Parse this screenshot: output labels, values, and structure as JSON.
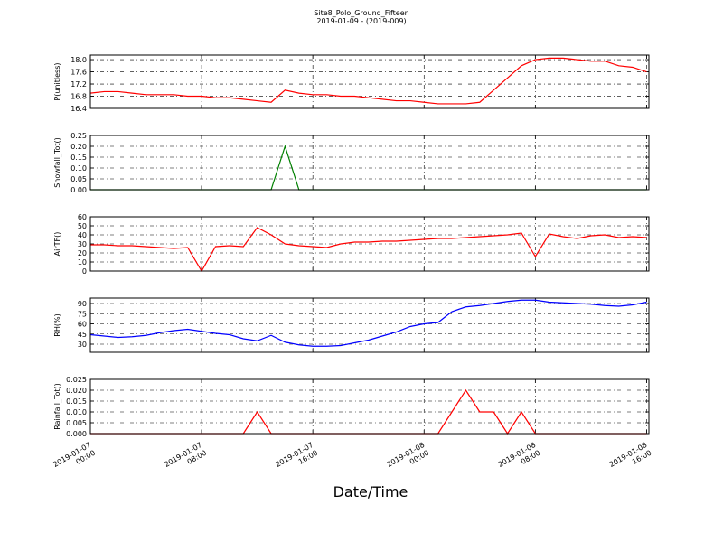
{
  "chart_data": [
    {
      "type": "line",
      "title": "Site8_Polo_Ground_Fifteen",
      "subtitle": "2019-01-09 - (2019-009)",
      "ylabel": "P(unitless)",
      "x": [
        "2019-01-07 00:00",
        "2019-01-07 01:00",
        "2019-01-07 02:00",
        "2019-01-07 03:00",
        "2019-01-07 04:00",
        "2019-01-07 05:00",
        "2019-01-07 06:00",
        "2019-01-07 07:00",
        "2019-01-07 08:00",
        "2019-01-07 09:00",
        "2019-01-07 10:00",
        "2019-01-07 11:00",
        "2019-01-07 12:00",
        "2019-01-07 13:00",
        "2019-01-07 14:00",
        "2019-01-07 15:00",
        "2019-01-07 16:00",
        "2019-01-07 17:00",
        "2019-01-07 18:00",
        "2019-01-07 19:00",
        "2019-01-07 20:00",
        "2019-01-07 21:00",
        "2019-01-07 22:00",
        "2019-01-07 23:00",
        "2019-01-08 00:00",
        "2019-01-08 01:00",
        "2019-01-08 02:00",
        "2019-01-08 03:00",
        "2019-01-08 04:00",
        "2019-01-08 05:00",
        "2019-01-08 06:00",
        "2019-01-08 07:00",
        "2019-01-08 08:00",
        "2019-01-08 09:00",
        "2019-01-08 10:00",
        "2019-01-08 11:00",
        "2019-01-08 12:00",
        "2019-01-08 13:00",
        "2019-01-08 14:00",
        "2019-01-08 15:00",
        "2019-01-08 16:00"
      ],
      "series": [
        {
          "name": "P",
          "color": "#ff0000",
          "values": [
            16.9,
            16.95,
            16.95,
            16.9,
            16.85,
            16.85,
            16.85,
            16.8,
            16.8,
            16.75,
            16.75,
            16.7,
            16.65,
            16.6,
            17.0,
            16.9,
            16.85,
            16.85,
            16.8,
            16.8,
            16.75,
            16.7,
            16.65,
            16.65,
            16.6,
            16.55,
            16.55,
            16.55,
            16.6,
            17.0,
            17.4,
            17.8,
            18.0,
            18.05,
            18.05,
            18.0,
            17.95,
            17.95,
            17.8,
            17.75,
            17.6
          ]
        }
      ],
      "ylim": [
        16.4,
        18.15
      ],
      "yticks": [
        16.4,
        16.8,
        17.2,
        17.6,
        {
          "value": 18,
          "label": "18.0"
        }
      ],
      "grid": true
    },
    {
      "type": "line",
      "ylabel": "Snowfall_Tot()",
      "x": [
        "2019-01-07 00:00",
        "2019-01-07 01:00",
        "2019-01-07 02:00",
        "2019-01-07 03:00",
        "2019-01-07 04:00",
        "2019-01-07 05:00",
        "2019-01-07 06:00",
        "2019-01-07 07:00",
        "2019-01-07 08:00",
        "2019-01-07 09:00",
        "2019-01-07 10:00",
        "2019-01-07 11:00",
        "2019-01-07 12:00",
        "2019-01-07 13:00",
        "2019-01-07 14:00",
        "2019-01-07 15:00",
        "2019-01-07 16:00",
        "2019-01-07 17:00",
        "2019-01-07 18:00",
        "2019-01-07 19:00",
        "2019-01-07 20:00",
        "2019-01-07 21:00",
        "2019-01-07 22:00",
        "2019-01-07 23:00",
        "2019-01-08 00:00",
        "2019-01-08 01:00",
        "2019-01-08 02:00",
        "2019-01-08 03:00",
        "2019-01-08 04:00",
        "2019-01-08 05:00",
        "2019-01-08 06:00",
        "2019-01-08 07:00",
        "2019-01-08 08:00",
        "2019-01-08 09:00",
        "2019-01-08 10:00",
        "2019-01-08 11:00",
        "2019-01-08 12:00",
        "2019-01-08 13:00",
        "2019-01-08 14:00",
        "2019-01-08 15:00",
        "2019-01-08 16:00"
      ],
      "series": [
        {
          "name": "Snowfall_Tot",
          "color": "#008000",
          "values": [
            0,
            0,
            0,
            0,
            0,
            0,
            0,
            0,
            0,
            0,
            0,
            0,
            0,
            0,
            0.2,
            0,
            0,
            0,
            0,
            0,
            0,
            0,
            0,
            0,
            0,
            0,
            0,
            0,
            0,
            0,
            0,
            0,
            0,
            0,
            0,
            0,
            0,
            0,
            0,
            0,
            0
          ]
        }
      ],
      "ylim": [
        0,
        0.25
      ],
      "yticks": [
        {
          "value": 0,
          "label": "0.00"
        },
        {
          "value": 0.05,
          "label": "0.05"
        },
        {
          "value": 0.1,
          "label": "0.10"
        },
        {
          "value": 0.15,
          "label": "0.15"
        },
        {
          "value": 0.2,
          "label": "0.20"
        },
        {
          "value": 0.25,
          "label": "0.25"
        }
      ],
      "grid": true
    },
    {
      "type": "line",
      "ylabel": "AirTF()",
      "x": [
        "2019-01-07 00:00",
        "2019-01-07 01:00",
        "2019-01-07 02:00",
        "2019-01-07 03:00",
        "2019-01-07 04:00",
        "2019-01-07 05:00",
        "2019-01-07 06:00",
        "2019-01-07 07:00",
        "2019-01-07 08:00",
        "2019-01-07 09:00",
        "2019-01-07 10:00",
        "2019-01-07 11:00",
        "2019-01-07 12:00",
        "2019-01-07 13:00",
        "2019-01-07 14:00",
        "2019-01-07 15:00",
        "2019-01-07 16:00",
        "2019-01-07 17:00",
        "2019-01-07 18:00",
        "2019-01-07 19:00",
        "2019-01-07 20:00",
        "2019-01-07 21:00",
        "2019-01-07 22:00",
        "2019-01-07 23:00",
        "2019-01-08 00:00",
        "2019-01-08 01:00",
        "2019-01-08 02:00",
        "2019-01-08 03:00",
        "2019-01-08 04:00",
        "2019-01-08 05:00",
        "2019-01-08 06:00",
        "2019-01-08 07:00",
        "2019-01-08 08:00",
        "2019-01-08 09:00",
        "2019-01-08 10:00",
        "2019-01-08 11:00",
        "2019-01-08 12:00",
        "2019-01-08 13:00",
        "2019-01-08 14:00",
        "2019-01-08 15:00",
        "2019-01-08 16:00"
      ],
      "series": [
        {
          "name": "AirTF",
          "color": "#ff0000",
          "values": [
            29,
            29,
            28,
            28,
            27,
            26,
            25,
            26,
            0,
            27,
            28,
            27,
            48,
            40,
            30,
            28,
            27,
            26,
            30,
            32,
            32,
            33,
            33,
            34,
            35,
            36,
            36,
            37,
            38,
            39,
            40,
            42,
            16,
            41,
            38,
            36,
            39,
            40,
            37,
            38,
            37
          ]
        }
      ],
      "ylim": [
        0,
        60
      ],
      "yticks": [
        0,
        10,
        20,
        30,
        40,
        50,
        60
      ],
      "grid": true
    },
    {
      "type": "line",
      "ylabel": "RH(%)",
      "x": [
        "2019-01-07 00:00",
        "2019-01-07 01:00",
        "2019-01-07 02:00",
        "2019-01-07 03:00",
        "2019-01-07 04:00",
        "2019-01-07 05:00",
        "2019-01-07 06:00",
        "2019-01-07 07:00",
        "2019-01-07 08:00",
        "2019-01-07 09:00",
        "2019-01-07 10:00",
        "2019-01-07 11:00",
        "2019-01-07 12:00",
        "2019-01-07 13:00",
        "2019-01-07 14:00",
        "2019-01-07 15:00",
        "2019-01-07 16:00",
        "2019-01-07 17:00",
        "2019-01-07 18:00",
        "2019-01-07 19:00",
        "2019-01-07 20:00",
        "2019-01-07 21:00",
        "2019-01-07 22:00",
        "2019-01-07 23:00",
        "2019-01-08 00:00",
        "2019-01-08 01:00",
        "2019-01-08 02:00",
        "2019-01-08 03:00",
        "2019-01-08 04:00",
        "2019-01-08 05:00",
        "2019-01-08 06:00",
        "2019-01-08 07:00",
        "2019-01-08 08:00",
        "2019-01-08 09:00",
        "2019-01-08 10:00",
        "2019-01-08 11:00",
        "2019-01-08 12:00",
        "2019-01-08 13:00",
        "2019-01-08 14:00",
        "2019-01-08 15:00",
        "2019-01-08 16:00"
      ],
      "series": [
        {
          "name": "RH",
          "color": "#0000ff",
          "values": [
            44,
            42,
            40,
            41,
            43,
            47,
            50,
            52,
            49,
            46,
            44,
            38,
            35,
            43,
            33,
            29,
            27,
            27,
            28,
            32,
            36,
            42,
            48,
            56,
            60,
            62,
            78,
            85,
            87,
            90,
            93,
            95,
            95,
            92,
            91,
            90,
            89,
            87,
            86,
            88,
            92
          ]
        }
      ],
      "ylim": [
        18,
        98
      ],
      "yticks": [
        30,
        45,
        60,
        75,
        90
      ],
      "grid": true
    },
    {
      "type": "line",
      "ylabel": "Rainfall_Tot()",
      "xlabel": "Date/Time",
      "x": [
        "2019-01-07 00:00",
        "2019-01-07 01:00",
        "2019-01-07 02:00",
        "2019-01-07 03:00",
        "2019-01-07 04:00",
        "2019-01-07 05:00",
        "2019-01-07 06:00",
        "2019-01-07 07:00",
        "2019-01-07 08:00",
        "2019-01-07 09:00",
        "2019-01-07 10:00",
        "2019-01-07 11:00",
        "2019-01-07 12:00",
        "2019-01-07 13:00",
        "2019-01-07 14:00",
        "2019-01-07 15:00",
        "2019-01-07 16:00",
        "2019-01-07 17:00",
        "2019-01-07 18:00",
        "2019-01-07 19:00",
        "2019-01-07 20:00",
        "2019-01-07 21:00",
        "2019-01-07 22:00",
        "2019-01-07 23:00",
        "2019-01-08 00:00",
        "2019-01-08 01:00",
        "2019-01-08 02:00",
        "2019-01-08 03:00",
        "2019-01-08 04:00",
        "2019-01-08 05:00",
        "2019-01-08 06:00",
        "2019-01-08 07:00",
        "2019-01-08 08:00",
        "2019-01-08 09:00",
        "2019-01-08 10:00",
        "2019-01-08 11:00",
        "2019-01-08 12:00",
        "2019-01-08 13:00",
        "2019-01-08 14:00",
        "2019-01-08 15:00",
        "2019-01-08 16:00"
      ],
      "series": [
        {
          "name": "Rainfall_Tot",
          "color": "#ff0000",
          "values": [
            0,
            0,
            0,
            0,
            0,
            0,
            0,
            0,
            0,
            0,
            0,
            0,
            0.01,
            0,
            0,
            0,
            0,
            0,
            0,
            0,
            0,
            0,
            0,
            0,
            0,
            0,
            0.01,
            0.02,
            0.01,
            0.01,
            0,
            0.01,
            0,
            0,
            0,
            0,
            0,
            0,
            0,
            0,
            0
          ]
        }
      ],
      "ylim": [
        0,
        0.025
      ],
      "yticks": [
        {
          "value": 0,
          "label": "0.000"
        },
        {
          "value": 0.005,
          "label": "0.005"
        },
        {
          "value": 0.01,
          "label": "0.010"
        },
        {
          "value": 0.015,
          "label": "0.015"
        },
        {
          "value": 0.02,
          "label": "0.020"
        },
        {
          "value": 0.025,
          "label": "0.025"
        }
      ],
      "xlim": [
        "2019-01-07 00:00",
        "2019-01-08 16:10"
      ],
      "xticks": [
        "2019-01-07 00:00",
        "2019-01-07 08:00",
        "2019-01-07 16:00",
        "2019-01-08 00:00",
        "2019-01-08 08:00",
        "2019-01-08 16:00"
      ],
      "grid": true
    }
  ]
}
